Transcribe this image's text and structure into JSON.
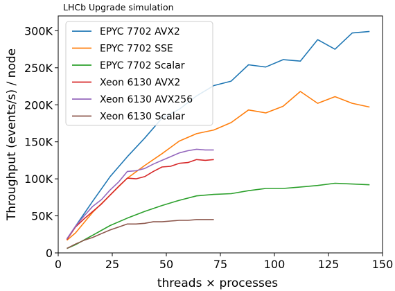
{
  "chart_data": {
    "type": "line",
    "title": "LHCb Upgrade simulation",
    "xlabel": "threads × processes",
    "ylabel": "Throughput (events/s) / node",
    "xlim": [
      0,
      150
    ],
    "ylim": [
      0,
      320000
    ],
    "xticks": [
      0,
      25,
      50,
      75,
      100,
      125,
      150
    ],
    "xtick_labels": [
      "0",
      "25",
      "50",
      "75",
      "100",
      "125",
      "150"
    ],
    "yticks": [
      0,
      50000,
      100000,
      150000,
      200000,
      250000,
      300000
    ],
    "ytick_labels": [
      "0",
      "50K",
      "100K",
      "150K",
      "200K",
      "250K",
      "300K"
    ],
    "grid": false,
    "legend_position": "upper-left",
    "series": [
      {
        "name": "EPYC 7702 AVX2",
        "color": "#1f77b4",
        "x": [
          4,
          8,
          16,
          24,
          32,
          40,
          48,
          56,
          64,
          72,
          80,
          88,
          96,
          104,
          112,
          120,
          128,
          136,
          144
        ],
        "y": [
          18000,
          36000,
          70000,
          103000,
          130000,
          155000,
          182000,
          194000,
          212000,
          226000,
          232000,
          254000,
          251000,
          261000,
          259000,
          288000,
          275000,
          297000,
          299000
        ]
      },
      {
        "name": "EPYC 7702 SSE",
        "color": "#ff7f0e",
        "x": [
          4,
          8,
          16,
          24,
          32,
          40,
          48,
          56,
          64,
          72,
          80,
          88,
          96,
          104,
          112,
          120,
          128,
          136,
          144
        ],
        "y": [
          17000,
          27000,
          55000,
          78000,
          101000,
          118000,
          134000,
          151000,
          161000,
          166000,
          176000,
          193000,
          189000,
          198000,
          218000,
          202000,
          211000,
          202000,
          197000
        ]
      },
      {
        "name": "EPYC 7702 Scalar",
        "color": "#2ca02c",
        "x": [
          4,
          8,
          16,
          24,
          32,
          40,
          48,
          56,
          64,
          72,
          80,
          88,
          96,
          104,
          112,
          120,
          128,
          136,
          144
        ],
        "y": [
          6000,
          11000,
          24000,
          37000,
          47000,
          56000,
          64000,
          71000,
          77000,
          79000,
          80000,
          84000,
          87000,
          87000,
          89000,
          91000,
          94000,
          93000,
          92000
        ]
      },
      {
        "name": "Xeon 6130 AVX2",
        "color": "#d62728",
        "x": [
          4,
          8,
          12,
          16,
          20,
          24,
          28,
          32,
          36,
          40,
          44,
          48,
          52,
          56,
          60,
          64,
          68,
          72
        ],
        "y": [
          18000,
          35000,
          46000,
          56000,
          66000,
          78000,
          90000,
          101000,
          100000,
          103000,
          110000,
          116000,
          117000,
          121000,
          122000,
          126000,
          125000,
          126000
        ]
      },
      {
        "name": "Xeon 6130 AVX256",
        "color": "#9467bd",
        "x": [
          4,
          8,
          12,
          16,
          20,
          24,
          28,
          32,
          36,
          40,
          44,
          48,
          52,
          56,
          60,
          64,
          68,
          72
        ],
        "y": [
          19000,
          36000,
          50000,
          63000,
          72000,
          85000,
          96000,
          110000,
          111000,
          114000,
          120000,
          125000,
          130000,
          135000,
          138000,
          140000,
          139000,
          139000
        ]
      },
      {
        "name": "Xeon 6130 Scalar",
        "color": "#8c564b",
        "x": [
          4,
          8,
          12,
          16,
          20,
          24,
          28,
          32,
          36,
          40,
          44,
          48,
          52,
          56,
          60,
          64,
          68,
          72
        ],
        "y": [
          6000,
          12000,
          17000,
          21000,
          26000,
          31000,
          35000,
          39000,
          39000,
          40000,
          42000,
          42000,
          43000,
          44000,
          44000,
          45000,
          45000,
          45000
        ]
      }
    ]
  }
}
